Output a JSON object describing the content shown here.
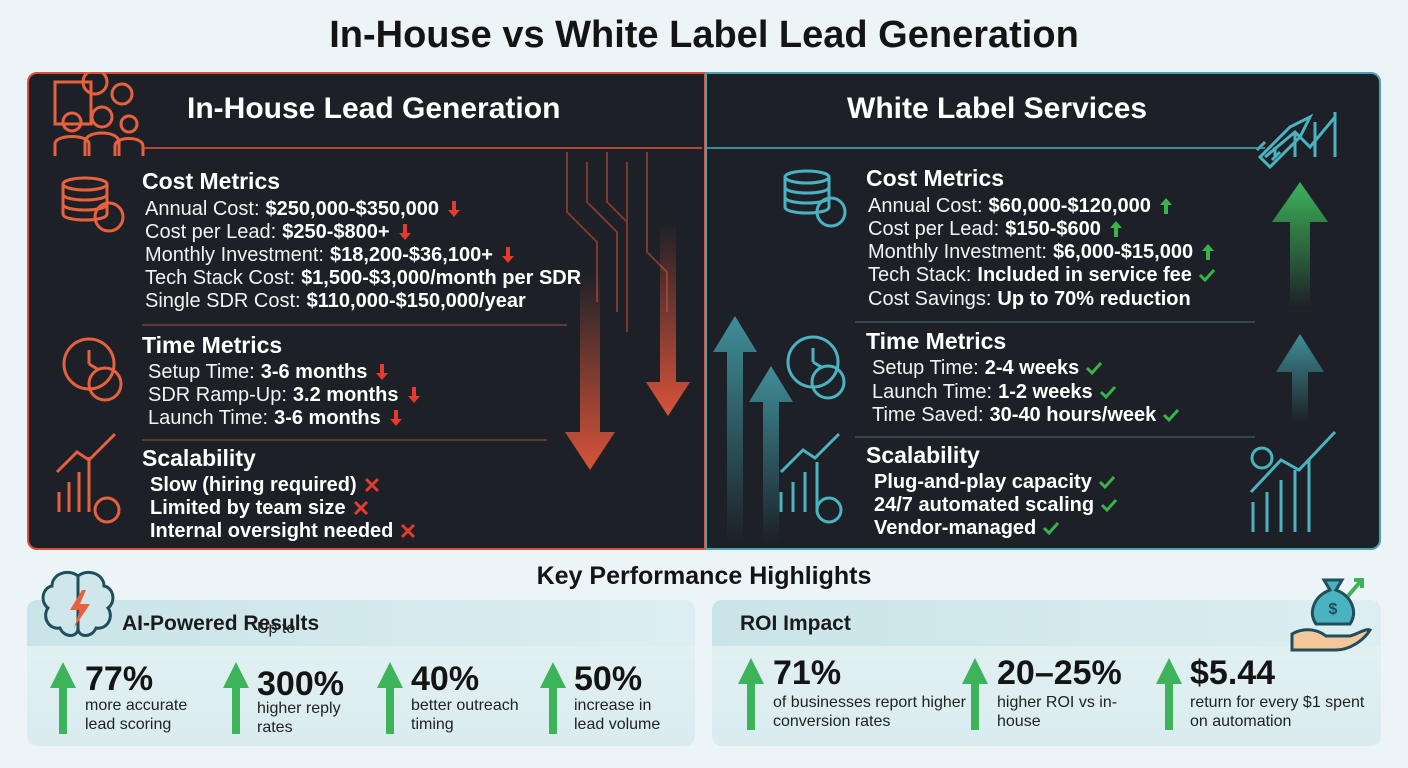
{
  "title": "In-House vs White Label Lead Generation",
  "panels": [
    {
      "title": "In-House Lead Generation",
      "sections": [
        {
          "heading": "Cost Metrics",
          "items": [
            {
              "label": "Annual Cost:",
              "value": "$250,000-$350,000"
            },
            {
              "label": "Cost per Lead:",
              "value": "$250-$800+"
            },
            {
              "label": "Monthly Investment:",
              "value": "$18,200-$36,100+"
            },
            {
              "label": "Tech Stack Cost:",
              "value": "$1,500-$3,000/month per SDR"
            },
            {
              "label": "Single SDR Cost:",
              "value": "$110,000-$150,000/year"
            }
          ]
        },
        {
          "heading": "Time Metrics",
          "items": [
            {
              "label": "Setup Time:",
              "value": "3-6 months"
            },
            {
              "label": "SDR Ramp-Up:",
              "value": "3.2 months"
            },
            {
              "label": "Launch Time:",
              "value": "3-6 months"
            }
          ]
        },
        {
          "heading": "Scalability",
          "items": [
            {
              "value": "Slow (hiring required)"
            },
            {
              "value": "Limited by team size"
            },
            {
              "value": "Internal oversight needed"
            }
          ]
        }
      ]
    },
    {
      "title": "White Label Services",
      "sections": [
        {
          "heading": "Cost Metrics",
          "items": [
            {
              "label": "Annual Cost:",
              "value": "$60,000-$120,000"
            },
            {
              "label": "Cost per Lead:",
              "value": "$150-$600"
            },
            {
              "label": "Monthly Investment:",
              "value": "$6,000-$15,000"
            },
            {
              "label": "Tech Stack:",
              "value": "Included in service fee"
            },
            {
              "label": "Cost Savings:",
              "value": "Up to 70% reduction"
            }
          ]
        },
        {
          "heading": "Time Metrics",
          "items": [
            {
              "label": "Setup Time:",
              "value": "2-4 weeks"
            },
            {
              "label": "Launch Time:",
              "value": "1-2 weeks"
            },
            {
              "label": "Time Saved:",
              "value": "30-40 hours/week"
            }
          ]
        },
        {
          "heading": "Scalability",
          "items": [
            {
              "value": "Plug-and-play capacity"
            },
            {
              "value": "24/7 automated scaling"
            },
            {
              "value": "Vendor-managed"
            }
          ]
        }
      ]
    }
  ],
  "highlights": {
    "title": "Key Performance Highlights",
    "cards": [
      {
        "title": "AI-Powered Results",
        "stats": [
          {
            "value": "77%",
            "text": "more accurate lead scoring"
          },
          {
            "prefix": "Up to",
            "value": "300%",
            "text": "higher reply rates"
          },
          {
            "value": "40%",
            "text": "better outreach timing"
          },
          {
            "value": "50%",
            "text": "increase in lead volume"
          }
        ]
      },
      {
        "title": "ROI Impact",
        "stats": [
          {
            "value": "71%",
            "text": "of businesses report higher conversion rates"
          },
          {
            "value": "20–25%",
            "text": "higher ROI vs in-house"
          },
          {
            "value": "$5.44",
            "text": "return for every $1 spent on automation"
          }
        ]
      }
    ]
  }
}
